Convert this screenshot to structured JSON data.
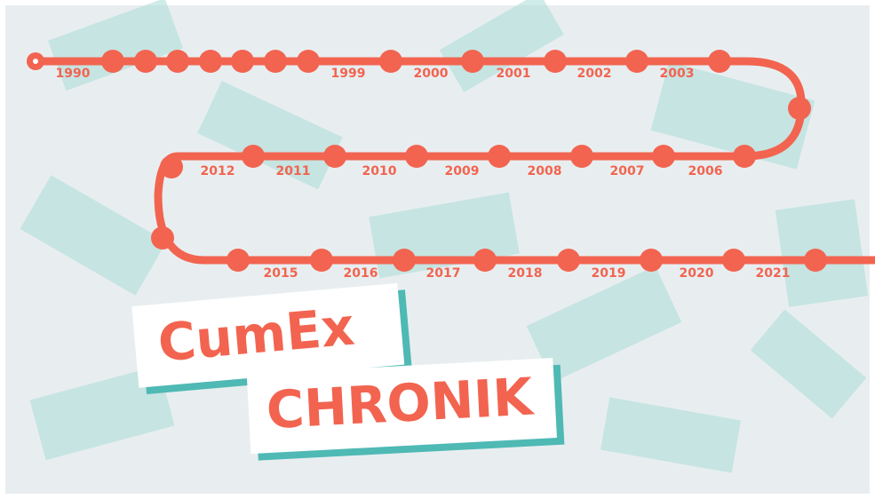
{
  "title": {
    "line1": "CumEx",
    "line2": "CHRONIK"
  },
  "timeline": {
    "rows": [
      [
        "1990",
        "1999",
        "2000",
        "2001",
        "2002",
        "2003"
      ],
      [
        "2012",
        "2011",
        "2010",
        "2009",
        "2008",
        "2007",
        "2006"
      ],
      [
        "2015",
        "2016",
        "2017",
        "2018",
        "2019",
        "2020",
        "2021"
      ]
    ]
  }
}
